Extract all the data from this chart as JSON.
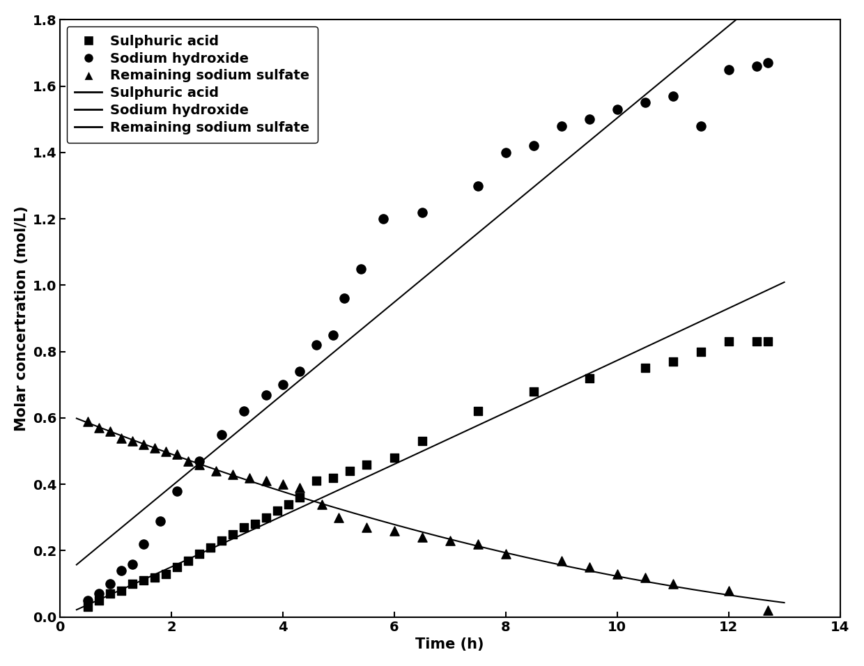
{
  "title": "",
  "xlabel": "Time (h)",
  "ylabel": "Molar concertration (mol/L)",
  "xlim": [
    0,
    14
  ],
  "ylim": [
    0.0,
    1.8
  ],
  "xticks": [
    0,
    2,
    4,
    6,
    8,
    10,
    12,
    14
  ],
  "yticks": [
    0.0,
    0.2,
    0.4,
    0.6,
    0.8,
    1.0,
    1.2,
    1.4,
    1.6,
    1.8
  ],
  "sulphuric_acid_scatter": {
    "x": [
      0.5,
      0.7,
      0.9,
      1.1,
      1.3,
      1.5,
      1.7,
      1.9,
      2.1,
      2.3,
      2.5,
      2.7,
      2.9,
      3.1,
      3.3,
      3.5,
      3.7,
      3.9,
      4.1,
      4.3,
      4.6,
      4.9,
      5.2,
      5.5,
      6.0,
      6.5,
      7.5,
      8.5,
      9.5,
      10.5,
      11.0,
      11.5,
      12.0,
      12.5,
      12.7
    ],
    "y": [
      0.03,
      0.05,
      0.07,
      0.08,
      0.1,
      0.11,
      0.12,
      0.13,
      0.15,
      0.17,
      0.19,
      0.21,
      0.23,
      0.25,
      0.27,
      0.28,
      0.3,
      0.32,
      0.34,
      0.36,
      0.41,
      0.42,
      0.44,
      0.46,
      0.48,
      0.53,
      0.62,
      0.68,
      0.72,
      0.75,
      0.77,
      0.8,
      0.83,
      0.83,
      0.83
    ]
  },
  "sodium_hydroxide_scatter": {
    "x": [
      0.5,
      0.7,
      0.9,
      1.1,
      1.3,
      1.5,
      1.8,
      2.1,
      2.5,
      2.9,
      3.3,
      3.7,
      4.0,
      4.3,
      4.6,
      4.9,
      5.1,
      5.4,
      5.8,
      6.5,
      7.5,
      8.0,
      8.5,
      9.0,
      9.5,
      10.0,
      10.5,
      11.0,
      11.5,
      12.0,
      12.5,
      12.7
    ],
    "y": [
      0.05,
      0.07,
      0.1,
      0.14,
      0.16,
      0.22,
      0.29,
      0.38,
      0.47,
      0.55,
      0.62,
      0.67,
      0.7,
      0.74,
      0.82,
      0.85,
      0.96,
      1.05,
      1.2,
      1.22,
      1.3,
      1.4,
      1.42,
      1.48,
      1.5,
      1.53,
      1.55,
      1.57,
      1.48,
      1.65,
      1.66,
      1.67
    ]
  },
  "sodium_sulfate_scatter": {
    "x": [
      0.5,
      0.7,
      0.9,
      1.1,
      1.3,
      1.5,
      1.7,
      1.9,
      2.1,
      2.3,
      2.5,
      2.8,
      3.1,
      3.4,
      3.7,
      4.0,
      4.3,
      4.7,
      5.0,
      5.5,
      6.0,
      6.5,
      7.0,
      7.5,
      8.0,
      9.0,
      9.5,
      10.0,
      10.5,
      11.0,
      12.0,
      12.7
    ],
    "y": [
      0.59,
      0.57,
      0.56,
      0.54,
      0.53,
      0.52,
      0.51,
      0.5,
      0.49,
      0.47,
      0.46,
      0.44,
      0.43,
      0.42,
      0.41,
      0.4,
      0.39,
      0.34,
      0.3,
      0.27,
      0.26,
      0.24,
      0.23,
      0.22,
      0.19,
      0.17,
      0.15,
      0.13,
      0.12,
      0.1,
      0.08,
      0.02
    ]
  },
  "legend_scatter_labels": [
    "Sulphuric acid",
    "Sodium hydroxide",
    "Remaining sodium sulfate"
  ],
  "legend_line_labels": [
    "Sulphuric acid",
    "Sodium hydroxide",
    "Remaining sodium sulfate"
  ],
  "color": "#000000",
  "background_color": "#ffffff",
  "fontsize_labels": 15,
  "fontsize_ticks": 14,
  "fontsize_legend": 14
}
